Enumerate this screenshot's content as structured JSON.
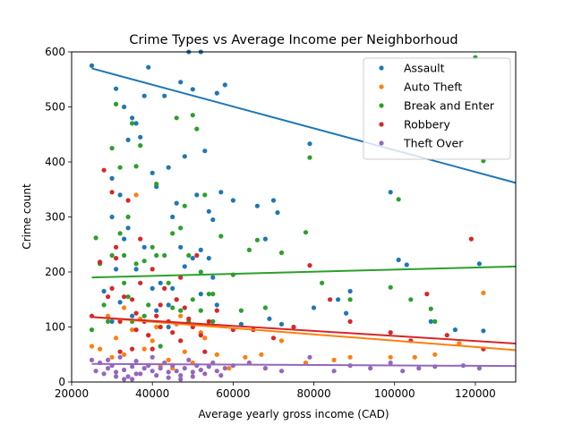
{
  "chart_data": {
    "type": "scatter",
    "title": "Crime Types vs Average Income per Neighborhoud",
    "xlabel": "Average yearly gross income (CAD)",
    "ylabel": "Crime count",
    "xlim": [
      20000,
      130000
    ],
    "ylim": [
      0,
      600
    ],
    "x_ticks": [
      20000,
      40000,
      60000,
      80000,
      100000,
      120000
    ],
    "y_ticks": [
      0,
      100,
      200,
      300,
      400,
      500,
      600
    ],
    "grid": false,
    "legend_position": "top-right",
    "series": [
      {
        "name": "Assault",
        "color": "#1f77b4",
        "trend": [
          [
            25000,
            570
          ],
          [
            130000,
            362
          ]
        ],
        "points": [
          [
            25000,
            575
          ],
          [
            30000,
            370
          ],
          [
            31000,
            533
          ],
          [
            32000,
            340
          ],
          [
            33000,
            500
          ],
          [
            34000,
            440
          ],
          [
            35000,
            480
          ],
          [
            36000,
            470
          ],
          [
            37000,
            445
          ],
          [
            38000,
            520
          ],
          [
            39000,
            572
          ],
          [
            40000,
            380
          ],
          [
            41000,
            355
          ],
          [
            43000,
            520
          ],
          [
            44000,
            390
          ],
          [
            45000,
            300
          ],
          [
            46000,
            325
          ],
          [
            47000,
            545
          ],
          [
            48000,
            410
          ],
          [
            49000,
            600
          ],
          [
            50000,
            532
          ],
          [
            51000,
            340
          ],
          [
            52000,
            600
          ],
          [
            53000,
            420
          ],
          [
            54000,
            310
          ],
          [
            55000,
            295
          ],
          [
            56000,
            525
          ],
          [
            57000,
            345
          ],
          [
            58000,
            540
          ],
          [
            60000,
            330
          ],
          [
            66000,
            320
          ],
          [
            68000,
            260
          ],
          [
            70000,
            330
          ],
          [
            71000,
            308
          ],
          [
            79000,
            433
          ],
          [
            86000,
            150
          ],
          [
            89000,
            165
          ],
          [
            99000,
            345
          ],
          [
            101000,
            222
          ],
          [
            103000,
            213
          ],
          [
            115000,
            95
          ],
          [
            121000,
            215
          ],
          [
            122000,
            93
          ],
          [
            31000,
            205
          ],
          [
            33000,
            260
          ],
          [
            36000,
            205
          ],
          [
            42000,
            180
          ],
          [
            46000,
            150
          ],
          [
            48000,
            210
          ],
          [
            50000,
            225
          ],
          [
            54000,
            225
          ],
          [
            62000,
            105
          ],
          [
            69000,
            115
          ],
          [
            72000,
            105
          ],
          [
            80000,
            135
          ],
          [
            35000,
            120
          ],
          [
            41000,
            130
          ],
          [
            44000,
            140
          ],
          [
            52000,
            160
          ],
          [
            56000,
            140
          ],
          [
            30000,
            300
          ],
          [
            34000,
            280
          ],
          [
            38000,
            245
          ],
          [
            40000,
            170
          ],
          [
            45000,
            170
          ],
          [
            47000,
            245
          ],
          [
            52000,
            240
          ],
          [
            55000,
            190
          ],
          [
            28000,
            165
          ],
          [
            32000,
            145
          ],
          [
            88000,
            125
          ],
          [
            109000,
            110
          ],
          [
            44000,
            100
          ],
          [
            30000,
            110
          ]
        ]
      },
      {
        "name": "Auto Theft",
        "color": "#ff7f0e",
        "trend": [
          [
            25000,
            118
          ],
          [
            130000,
            58
          ]
        ],
        "points": [
          [
            25000,
            65
          ],
          [
            27000,
            60
          ],
          [
            29000,
            120
          ],
          [
            31000,
            80
          ],
          [
            33000,
            50
          ],
          [
            35000,
            95
          ],
          [
            36000,
            340
          ],
          [
            37000,
            115
          ],
          [
            38000,
            60
          ],
          [
            40000,
            75
          ],
          [
            42000,
            30
          ],
          [
            44000,
            40
          ],
          [
            46000,
            105
          ],
          [
            48000,
            55
          ],
          [
            50000,
            35
          ],
          [
            52000,
            90
          ],
          [
            54000,
            110
          ],
          [
            56000,
            50
          ],
          [
            59000,
            25
          ],
          [
            63000,
            45
          ],
          [
            67000,
            50
          ],
          [
            72000,
            75
          ],
          [
            78000,
            35
          ],
          [
            85000,
            40
          ],
          [
            89000,
            45
          ],
          [
            99000,
            45
          ],
          [
            105000,
            45
          ],
          [
            110000,
            50
          ],
          [
            116000,
            70
          ],
          [
            122000,
            162
          ],
          [
            33000,
            135
          ],
          [
            39000,
            85
          ],
          [
            45000,
            25
          ],
          [
            30000,
            45
          ],
          [
            47000,
            120
          ],
          [
            53000,
            80
          ],
          [
            41000,
            100
          ]
        ]
      },
      {
        "name": "Break and Enter",
        "color": "#2ca02c",
        "trend": [
          [
            25000,
            190
          ],
          [
            130000,
            210
          ]
        ],
        "points": [
          [
            25000,
            95
          ],
          [
            26000,
            262
          ],
          [
            28000,
            140
          ],
          [
            30000,
            425
          ],
          [
            31000,
            505
          ],
          [
            32000,
            390
          ],
          [
            33000,
            180
          ],
          [
            34000,
            300
          ],
          [
            35000,
            110
          ],
          [
            36000,
            392
          ],
          [
            37000,
            430
          ],
          [
            38000,
            220
          ],
          [
            40000,
            245
          ],
          [
            41000,
            360
          ],
          [
            43000,
            230
          ],
          [
            44000,
            180
          ],
          [
            45000,
            270
          ],
          [
            47000,
            280
          ],
          [
            48000,
            320
          ],
          [
            49000,
            230
          ],
          [
            50000,
            485
          ],
          [
            51000,
            460
          ],
          [
            52000,
            200
          ],
          [
            53000,
            340
          ],
          [
            54000,
            160
          ],
          [
            55000,
            110
          ],
          [
            57000,
            265
          ],
          [
            60000,
            195
          ],
          [
            62000,
            130
          ],
          [
            64000,
            240
          ],
          [
            66000,
            258
          ],
          [
            68000,
            135
          ],
          [
            72000,
            235
          ],
          [
            78000,
            272
          ],
          [
            79000,
            408
          ],
          [
            82000,
            180
          ],
          [
            89000,
            150
          ],
          [
            99000,
            172
          ],
          [
            101000,
            332
          ],
          [
            104000,
            150
          ],
          [
            109000,
            133
          ],
          [
            110000,
            110
          ],
          [
            120000,
            590
          ],
          [
            122000,
            402
          ],
          [
            29000,
            110
          ],
          [
            32000,
            270
          ],
          [
            36000,
            215
          ],
          [
            39000,
            140
          ],
          [
            41000,
            230
          ],
          [
            45000,
            135
          ],
          [
            47000,
            130
          ],
          [
            49000,
            110
          ],
          [
            52000,
            130
          ],
          [
            55000,
            160
          ],
          [
            30000,
            230
          ],
          [
            27000,
            215
          ],
          [
            34000,
            155
          ],
          [
            38000,
            120
          ],
          [
            42000,
            65
          ],
          [
            35000,
            470
          ],
          [
            33000,
            230
          ],
          [
            46000,
            480
          ],
          [
            50000,
            150
          ]
        ]
      },
      {
        "name": "Robbery",
        "color": "#d62728",
        "trend": [
          [
            25000,
            118
          ],
          [
            130000,
            70
          ]
        ],
        "points": [
          [
            25000,
            120
          ],
          [
            27000,
            218
          ],
          [
            28000,
            385
          ],
          [
            29000,
            155
          ],
          [
            30000,
            345
          ],
          [
            31000,
            225
          ],
          [
            32000,
            110
          ],
          [
            33000,
            155
          ],
          [
            34000,
            330
          ],
          [
            35000,
            150
          ],
          [
            36000,
            125
          ],
          [
            37000,
            260
          ],
          [
            38000,
            110
          ],
          [
            39000,
            85
          ],
          [
            40000,
            205
          ],
          [
            41000,
            120
          ],
          [
            42000,
            100
          ],
          [
            43000,
            170
          ],
          [
            44000,
            110
          ],
          [
            45000,
            90
          ],
          [
            46000,
            150
          ],
          [
            47000,
            75
          ],
          [
            48000,
            135
          ],
          [
            49000,
            115
          ],
          [
            50000,
            100
          ],
          [
            52000,
            85
          ],
          [
            54000,
            110
          ],
          [
            56000,
            130
          ],
          [
            60000,
            95
          ],
          [
            65000,
            95
          ],
          [
            70000,
            80
          ],
          [
            75000,
            100
          ],
          [
            79000,
            212
          ],
          [
            84000,
            150
          ],
          [
            89000,
            110
          ],
          [
            99000,
            90
          ],
          [
            104000,
            75
          ],
          [
            108000,
            160
          ],
          [
            113000,
            85
          ],
          [
            119000,
            260
          ],
          [
            122000,
            60
          ],
          [
            30000,
            170
          ],
          [
            32000,
            55
          ],
          [
            35000,
            60
          ],
          [
            37000,
            180
          ],
          [
            40000,
            60
          ],
          [
            42000,
            140
          ],
          [
            47000,
            190
          ],
          [
            51000,
            230
          ],
          [
            53000,
            55
          ],
          [
            31000,
            245
          ],
          [
            36000,
            95
          ]
        ]
      },
      {
        "name": "Theft Over",
        "color": "#9467bd",
        "trend": [
          [
            25000,
            33
          ],
          [
            130000,
            29
          ]
        ],
        "points": [
          [
            25000,
            40
          ],
          [
            26000,
            20
          ],
          [
            27000,
            35
          ],
          [
            28000,
            15
          ],
          [
            29000,
            25
          ],
          [
            30000,
            30
          ],
          [
            31000,
            18
          ],
          [
            32000,
            45
          ],
          [
            33000,
            22
          ],
          [
            34000,
            10
          ],
          [
            35000,
            28
          ],
          [
            36000,
            38
          ],
          [
            37000,
            15
          ],
          [
            38000,
            25
          ],
          [
            39000,
            30
          ],
          [
            40000,
            20
          ],
          [
            41000,
            12
          ],
          [
            42000,
            25
          ],
          [
            43000,
            35
          ],
          [
            44000,
            18
          ],
          [
            45000,
            30
          ],
          [
            46000,
            20
          ],
          [
            47000,
            12
          ],
          [
            48000,
            25
          ],
          [
            49000,
            40
          ],
          [
            50000,
            18
          ],
          [
            51000,
            30
          ],
          [
            52000,
            22
          ],
          [
            53000,
            15
          ],
          [
            54000,
            28
          ],
          [
            55000,
            35
          ],
          [
            56000,
            20
          ],
          [
            58000,
            25
          ],
          [
            60000,
            30
          ],
          [
            64000,
            35
          ],
          [
            68000,
            25
          ],
          [
            72000,
            20
          ],
          [
            79000,
            45
          ],
          [
            85000,
            20
          ],
          [
            89000,
            30
          ],
          [
            94000,
            25
          ],
          [
            99000,
            35
          ],
          [
            102000,
            20
          ],
          [
            106000,
            25
          ],
          [
            110000,
            28
          ],
          [
            117000,
            30
          ],
          [
            121000,
            25
          ],
          [
            31000,
            10
          ],
          [
            33000,
            5
          ],
          [
            36000,
            15
          ],
          [
            44000,
            8
          ],
          [
            47000,
            5
          ],
          [
            50000,
            10
          ],
          [
            29000,
            40
          ],
          [
            40000,
            45
          ],
          [
            57000,
            12
          ],
          [
            35000,
            5
          ]
        ]
      }
    ]
  }
}
